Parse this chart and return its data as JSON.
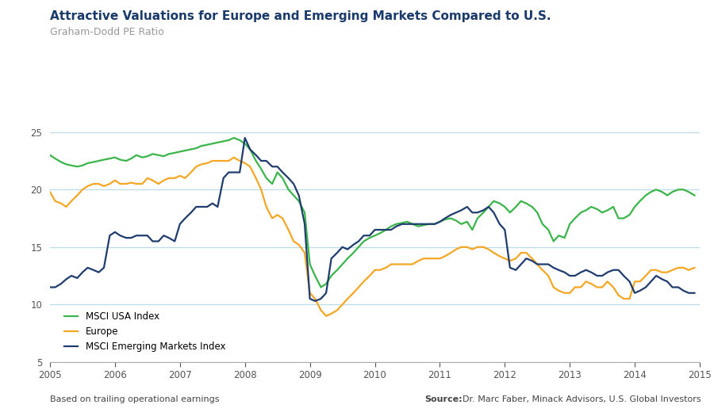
{
  "title": "Attractive Valuations for Europe and Emerging Markets Compared to U.S.",
  "subtitle": "Graham-Dodd PE Ratio",
  "footnote_left": "Based on trailing operational earnings",
  "footnote_right": "Dr. Marc Faber, Minack Advisors, U.S. Global Investors",
  "xlim": [
    2005.0,
    2015.0
  ],
  "ylim": [
    5,
    26
  ],
  "yticks": [
    5,
    10,
    15,
    20,
    25
  ],
  "xticks": [
    2005,
    2006,
    2007,
    2008,
    2009,
    2010,
    2011,
    2012,
    2013,
    2014,
    2015
  ],
  "grid_color": "#b8dce8",
  "bg_color": "#ffffff",
  "title_color": "#1a3a6b",
  "subtitle_color": "#999999",
  "tick_color": "#555555",
  "line_colors": {
    "usa": "#3ab54a",
    "europe": "#f5a623",
    "em": "#1f3c6e"
  },
  "legend": {
    "usa": "MSCI USA Index",
    "europe": "Europe",
    "em": "MSCI Emerging Markets Index"
  },
  "usa_x": [
    2005.0,
    2005.08,
    2005.17,
    2005.25,
    2005.33,
    2005.42,
    2005.5,
    2005.58,
    2005.67,
    2005.75,
    2005.83,
    2005.92,
    2006.0,
    2006.08,
    2006.17,
    2006.25,
    2006.33,
    2006.42,
    2006.5,
    2006.58,
    2006.67,
    2006.75,
    2006.83,
    2006.92,
    2007.0,
    2007.08,
    2007.17,
    2007.25,
    2007.33,
    2007.42,
    2007.5,
    2007.58,
    2007.67,
    2007.75,
    2007.83,
    2007.92,
    2008.0,
    2008.08,
    2008.17,
    2008.25,
    2008.33,
    2008.42,
    2008.5,
    2008.58,
    2008.67,
    2008.75,
    2008.83,
    2008.92,
    2009.0,
    2009.08,
    2009.17,
    2009.25,
    2009.33,
    2009.42,
    2009.5,
    2009.58,
    2009.67,
    2009.75,
    2009.83,
    2009.92,
    2010.0,
    2010.08,
    2010.17,
    2010.25,
    2010.33,
    2010.42,
    2010.5,
    2010.58,
    2010.67,
    2010.75,
    2010.83,
    2010.92,
    2011.0,
    2011.08,
    2011.17,
    2011.25,
    2011.33,
    2011.42,
    2011.5,
    2011.58,
    2011.67,
    2011.75,
    2011.83,
    2011.92,
    2012.0,
    2012.08,
    2012.17,
    2012.25,
    2012.33,
    2012.42,
    2012.5,
    2012.58,
    2012.67,
    2012.75,
    2012.83,
    2012.92,
    2013.0,
    2013.08,
    2013.17,
    2013.25,
    2013.33,
    2013.42,
    2013.5,
    2013.58,
    2013.67,
    2013.75,
    2013.83,
    2013.92,
    2014.0,
    2014.08,
    2014.17,
    2014.25,
    2014.33,
    2014.42,
    2014.5,
    2014.58,
    2014.67,
    2014.75,
    2014.83,
    2014.92
  ],
  "usa_y": [
    23.0,
    22.7,
    22.4,
    22.2,
    22.1,
    22.0,
    22.1,
    22.3,
    22.4,
    22.5,
    22.6,
    22.7,
    22.8,
    22.6,
    22.5,
    22.7,
    23.0,
    22.8,
    22.9,
    23.1,
    23.0,
    22.9,
    23.1,
    23.2,
    23.3,
    23.4,
    23.5,
    23.6,
    23.8,
    23.9,
    24.0,
    24.1,
    24.2,
    24.3,
    24.5,
    24.3,
    24.0,
    23.5,
    22.5,
    21.8,
    21.0,
    20.5,
    21.5,
    21.0,
    20.0,
    19.5,
    19.0,
    18.0,
    13.5,
    12.5,
    11.5,
    11.8,
    12.5,
    13.0,
    13.5,
    14.0,
    14.5,
    15.0,
    15.5,
    15.8,
    16.0,
    16.2,
    16.5,
    16.8,
    17.0,
    17.1,
    17.2,
    17.0,
    16.8,
    16.9,
    17.0,
    17.0,
    17.2,
    17.4,
    17.5,
    17.3,
    17.0,
    17.2,
    16.5,
    17.5,
    18.0,
    18.5,
    19.0,
    18.8,
    18.5,
    18.0,
    18.5,
    19.0,
    18.8,
    18.5,
    18.0,
    17.0,
    16.5,
    15.5,
    16.0,
    15.8,
    17.0,
    17.5,
    18.0,
    18.2,
    18.5,
    18.3,
    18.0,
    18.2,
    18.5,
    17.5,
    17.5,
    17.8,
    18.5,
    19.0,
    19.5,
    19.8,
    20.0,
    19.8,
    19.5,
    19.8,
    20.0,
    20.0,
    19.8,
    19.5
  ],
  "europe_x": [
    2005.0,
    2005.08,
    2005.17,
    2005.25,
    2005.33,
    2005.42,
    2005.5,
    2005.58,
    2005.67,
    2005.75,
    2005.83,
    2005.92,
    2006.0,
    2006.08,
    2006.17,
    2006.25,
    2006.33,
    2006.42,
    2006.5,
    2006.58,
    2006.67,
    2006.75,
    2006.83,
    2006.92,
    2007.0,
    2007.08,
    2007.17,
    2007.25,
    2007.33,
    2007.42,
    2007.5,
    2007.58,
    2007.67,
    2007.75,
    2007.83,
    2007.92,
    2008.0,
    2008.08,
    2008.17,
    2008.25,
    2008.33,
    2008.42,
    2008.5,
    2008.58,
    2008.67,
    2008.75,
    2008.83,
    2008.92,
    2009.0,
    2009.08,
    2009.17,
    2009.25,
    2009.33,
    2009.42,
    2009.5,
    2009.58,
    2009.67,
    2009.75,
    2009.83,
    2009.92,
    2010.0,
    2010.08,
    2010.17,
    2010.25,
    2010.33,
    2010.42,
    2010.5,
    2010.58,
    2010.67,
    2010.75,
    2010.83,
    2010.92,
    2011.0,
    2011.08,
    2011.17,
    2011.25,
    2011.33,
    2011.42,
    2011.5,
    2011.58,
    2011.67,
    2011.75,
    2011.83,
    2011.92,
    2012.0,
    2012.08,
    2012.17,
    2012.25,
    2012.33,
    2012.42,
    2012.5,
    2012.58,
    2012.67,
    2012.75,
    2012.83,
    2012.92,
    2013.0,
    2013.08,
    2013.17,
    2013.25,
    2013.33,
    2013.42,
    2013.5,
    2013.58,
    2013.67,
    2013.75,
    2013.83,
    2013.92,
    2014.0,
    2014.08,
    2014.17,
    2014.25,
    2014.33,
    2014.42,
    2014.5,
    2014.58,
    2014.67,
    2014.75,
    2014.83,
    2014.92
  ],
  "europe_y": [
    19.8,
    19.0,
    18.8,
    18.5,
    19.0,
    19.5,
    20.0,
    20.3,
    20.5,
    20.5,
    20.3,
    20.5,
    20.8,
    20.5,
    20.5,
    20.6,
    20.5,
    20.5,
    21.0,
    20.8,
    20.5,
    20.8,
    21.0,
    21.0,
    21.2,
    21.0,
    21.5,
    22.0,
    22.2,
    22.3,
    22.5,
    22.5,
    22.5,
    22.5,
    22.8,
    22.5,
    22.3,
    22.0,
    21.0,
    20.0,
    18.5,
    17.5,
    17.8,
    17.5,
    16.5,
    15.5,
    15.2,
    14.5,
    11.0,
    10.5,
    9.5,
    9.0,
    9.2,
    9.5,
    10.0,
    10.5,
    11.0,
    11.5,
    12.0,
    12.5,
    13.0,
    13.0,
    13.2,
    13.5,
    13.5,
    13.5,
    13.5,
    13.5,
    13.8,
    14.0,
    14.0,
    14.0,
    14.0,
    14.2,
    14.5,
    14.8,
    15.0,
    15.0,
    14.8,
    15.0,
    15.0,
    14.8,
    14.5,
    14.2,
    14.0,
    13.8,
    14.0,
    14.5,
    14.5,
    14.0,
    13.5,
    13.0,
    12.5,
    11.5,
    11.2,
    11.0,
    11.0,
    11.5,
    11.5,
    12.0,
    11.8,
    11.5,
    11.5,
    12.0,
    11.5,
    10.8,
    10.5,
    10.5,
    12.0,
    12.0,
    12.5,
    13.0,
    13.0,
    12.8,
    12.8,
    13.0,
    13.2,
    13.2,
    13.0,
    13.2
  ],
  "em_x": [
    2005.0,
    2005.08,
    2005.17,
    2005.25,
    2005.33,
    2005.42,
    2005.5,
    2005.58,
    2005.67,
    2005.75,
    2005.83,
    2005.92,
    2006.0,
    2006.08,
    2006.17,
    2006.25,
    2006.33,
    2006.42,
    2006.5,
    2006.58,
    2006.67,
    2006.75,
    2006.83,
    2006.92,
    2007.0,
    2007.08,
    2007.17,
    2007.25,
    2007.33,
    2007.42,
    2007.5,
    2007.58,
    2007.67,
    2007.75,
    2007.83,
    2007.92,
    2008.0,
    2008.08,
    2008.17,
    2008.25,
    2008.33,
    2008.42,
    2008.5,
    2008.58,
    2008.67,
    2008.75,
    2008.83,
    2008.92,
    2009.0,
    2009.08,
    2009.17,
    2009.25,
    2009.33,
    2009.42,
    2009.5,
    2009.58,
    2009.67,
    2009.75,
    2009.83,
    2009.92,
    2010.0,
    2010.08,
    2010.17,
    2010.25,
    2010.33,
    2010.42,
    2010.5,
    2010.58,
    2010.67,
    2010.75,
    2010.83,
    2010.92,
    2011.0,
    2011.08,
    2011.17,
    2011.25,
    2011.33,
    2011.42,
    2011.5,
    2011.58,
    2011.67,
    2011.75,
    2011.83,
    2011.92,
    2012.0,
    2012.08,
    2012.17,
    2012.25,
    2012.33,
    2012.42,
    2012.5,
    2012.58,
    2012.67,
    2012.75,
    2012.83,
    2012.92,
    2013.0,
    2013.08,
    2013.17,
    2013.25,
    2013.33,
    2013.42,
    2013.5,
    2013.58,
    2013.67,
    2013.75,
    2013.83,
    2013.92,
    2014.0,
    2014.08,
    2014.17,
    2014.25,
    2014.33,
    2014.42,
    2014.5,
    2014.58,
    2014.67,
    2014.75,
    2014.83,
    2014.92
  ],
  "em_y": [
    11.5,
    11.5,
    11.8,
    12.2,
    12.5,
    12.3,
    12.8,
    13.2,
    13.0,
    12.8,
    13.2,
    16.0,
    16.3,
    16.0,
    15.8,
    15.8,
    16.0,
    16.0,
    16.0,
    15.5,
    15.5,
    16.0,
    15.8,
    15.5,
    17.0,
    17.5,
    18.0,
    18.5,
    18.5,
    18.5,
    18.8,
    18.5,
    21.0,
    21.5,
    21.5,
    21.5,
    24.5,
    23.5,
    23.0,
    22.5,
    22.5,
    22.0,
    22.0,
    21.5,
    21.0,
    20.5,
    19.5,
    17.0,
    10.5,
    10.3,
    10.5,
    11.0,
    14.0,
    14.5,
    15.0,
    14.8,
    15.2,
    15.5,
    16.0,
    16.0,
    16.5,
    16.5,
    16.5,
    16.5,
    16.8,
    17.0,
    17.0,
    17.0,
    17.0,
    17.0,
    17.0,
    17.0,
    17.2,
    17.5,
    17.8,
    18.0,
    18.2,
    18.5,
    18.0,
    18.0,
    18.2,
    18.5,
    18.0,
    17.0,
    16.5,
    13.2,
    13.0,
    13.5,
    14.0,
    13.8,
    13.5,
    13.5,
    13.5,
    13.2,
    13.0,
    12.8,
    12.5,
    12.5,
    12.8,
    13.0,
    12.8,
    12.5,
    12.5,
    12.8,
    13.0,
    13.0,
    12.5,
    12.0,
    11.0,
    11.2,
    11.5,
    12.0,
    12.5,
    12.2,
    12.0,
    11.5,
    11.5,
    11.2,
    11.0,
    11.0
  ]
}
